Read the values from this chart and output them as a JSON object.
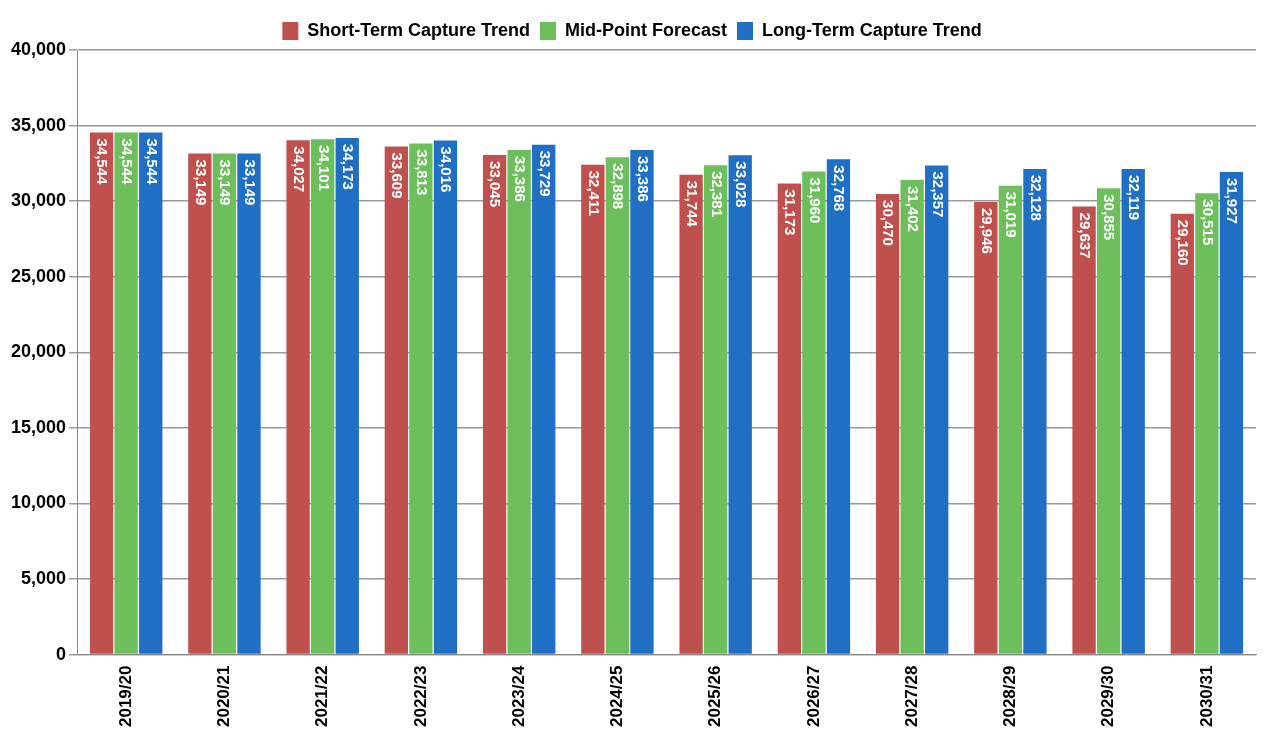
{
  "chart_data": {
    "type": "bar",
    "categories": [
      "2019/20",
      "2020/21",
      "2021/22",
      "2022/23",
      "2023/24",
      "2024/25",
      "2025/26",
      "2026/27",
      "2027/28",
      "2028/29",
      "2029/30",
      "2030/31"
    ],
    "series": [
      {
        "name": "Short-Term Capture Trend",
        "color": "#c0504d",
        "values": [
          34544,
          33149,
          34027,
          33609,
          33045,
          32411,
          31744,
          31173,
          30470,
          29946,
          29637,
          29160
        ],
        "value_labels": [
          "34,544",
          "33,149",
          "34,027",
          "33,609",
          "33,045",
          "32,411",
          "31,744",
          "31,173",
          "30,470",
          "29,946",
          "29,637",
          "29,160"
        ]
      },
      {
        "name": "Mid-Point Forecast",
        "color": "#6cbf5b",
        "values": [
          34544,
          33149,
          34101,
          33813,
          33386,
          32898,
          32381,
          31960,
          31402,
          31019,
          30855,
          30515
        ],
        "value_labels": [
          "34,544",
          "33,149",
          "34,101",
          "33,813",
          "33,386",
          "32,898",
          "32,381",
          "31,960",
          "31,402",
          "31,019",
          "30,855",
          "30,515"
        ]
      },
      {
        "name": "Long-Term Capture Trend",
        "color": "#1f6fc5",
        "values": [
          34544,
          33149,
          34173,
          34016,
          33729,
          33386,
          33028,
          32768,
          32357,
          32128,
          32119,
          31927
        ],
        "value_labels": [
          "34,544",
          "33,149",
          "34,173",
          "34,016",
          "33,729",
          "33,386",
          "33,028",
          "32,768",
          "32,357",
          "32,128",
          "32,119",
          "31,927"
        ]
      }
    ],
    "ylim": [
      0,
      40000
    ],
    "yticks": [
      0,
      {
        "value": 5000,
        "label": "5,000"
      },
      {
        "value": 10000,
        "label": "10,000"
      },
      {
        "value": 15000,
        "label": "15,000"
      },
      {
        "value": 20000,
        "label": "20,000"
      },
      {
        "value": 25000,
        "label": "25,000"
      },
      {
        "value": 30000,
        "label": "30,000"
      },
      {
        "value": 35000,
        "label": "35,000"
      },
      {
        "value": 40000,
        "label": "40,000"
      }
    ],
    "grid": "y",
    "legend": "top"
  }
}
